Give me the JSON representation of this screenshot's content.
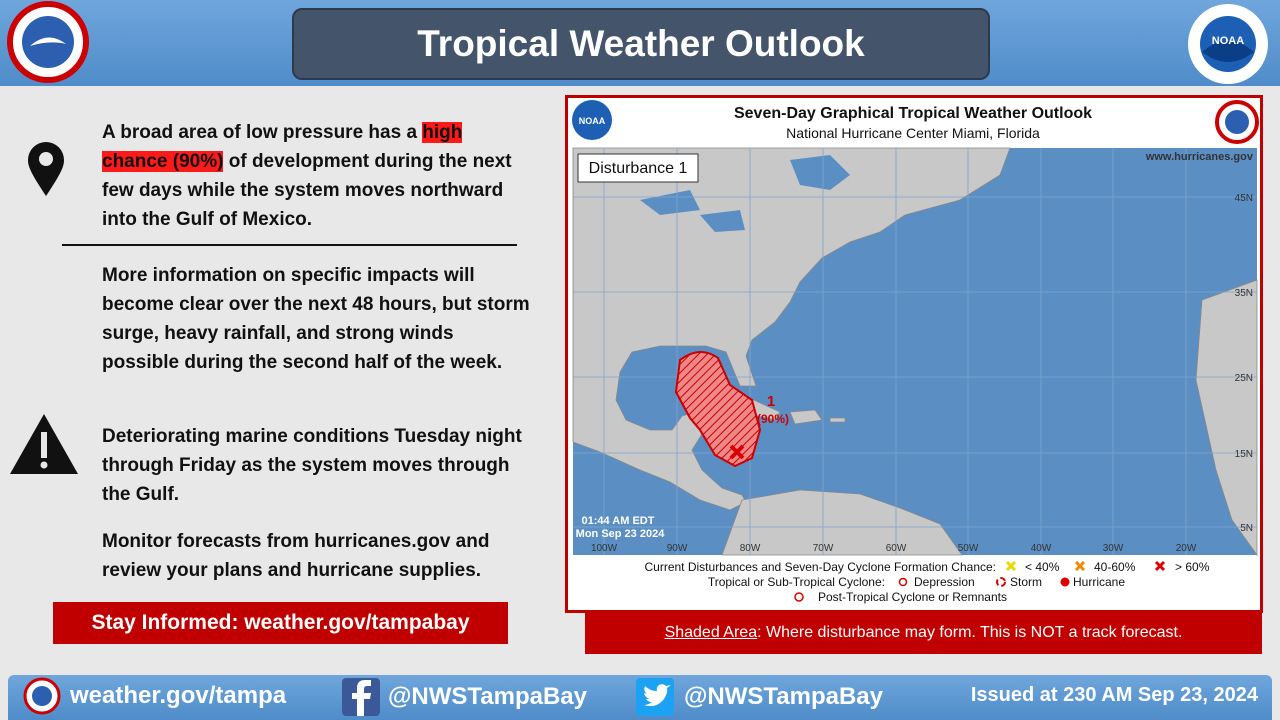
{
  "header": {
    "title": "Tropical Weather Outlook",
    "noaa_logo": "NOAA"
  },
  "left": {
    "p1": {
      "before": "A broad area of low pressure has a ",
      "highlight": "high chance (90%)",
      "after": " of development during the next few days while the system moves northward into the Gulf of Mexico."
    },
    "p2": "More information on specific impacts will become clear over the next 48 hours, but storm surge, heavy rainfall, and strong winds possible during the second half of the week.",
    "p3": "Deteriorating marine conditions Tuesday night through Friday as the system moves through the Gulf.",
    "p4": "Monitor forecasts from hurricanes.gov and review your plans and hurricane supplies.",
    "stay_informed": "Stay Informed: weather.gov/tampabay"
  },
  "map": {
    "title": "Seven-Day Graphical Tropical Weather Outlook",
    "subtitle": "National Hurricane Center  Miami, Florida",
    "website": "www.hurricanes.gov",
    "label": "Disturbance 1",
    "noaa_logo": "NOAA",
    "lat_labels": [
      "45N",
      "35N",
      "25N",
      "15N",
      "5N"
    ],
    "lon_labels": [
      "100W",
      "90W",
      "80W",
      "70W",
      "60W",
      "50W",
      "40W",
      "30W",
      "20W"
    ],
    "disturbance_number": "1",
    "disturbance_chance": "(90%)",
    "time": "01:44 AM EDT",
    "date": "Mon Sep 23 2024",
    "legend": {
      "row1": "Current Disturbances and Seven-Day Cyclone Formation Chance:",
      "low": "< 40%",
      "mid": "40-60%",
      "high": "> 60%",
      "row2": "Tropical or Sub-Tropical Cyclone:",
      "depression": "Depression",
      "storm": "Storm",
      "hurricane": "Hurricane",
      "row3": "Post-Tropical Cyclone or Remnants"
    }
  },
  "caption": {
    "underlined": "Shaded Area",
    "text": ": Where disturbance may form. This is NOT a track forecast."
  },
  "footer": {
    "website": "weather.gov/tampa",
    "facebook": "@NWSTampaBay",
    "twitter": "@NWSTampaBay",
    "issued": "Issued at 230 AM Sep 23, 2024"
  }
}
